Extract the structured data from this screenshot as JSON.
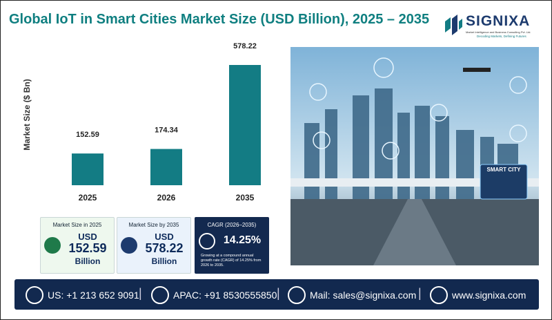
{
  "header": {
    "title": "Global IoT in Smart Cities Market Size (USD Billion), 2025 – 2035"
  },
  "logo": {
    "name": "SIGNIXA",
    "tagline": "Market Intelligence and Business Consulting Pvt. Ltd.",
    "motto": "Decoding Markets, Defining Futures"
  },
  "chart_data": {
    "type": "bar",
    "y_label": "Market Size ($ Bn)",
    "categories": [
      "2025",
      "2026",
      "2035"
    ],
    "values": [
      152.59,
      174.34,
      578.22
    ],
    "color": "#137c84"
  },
  "cards": [
    {
      "title": "Market Size in 2025",
      "currency": "USD",
      "unit": "Billion"
    },
    {
      "title": "Market Size by 2035",
      "currency": "USD",
      "unit": "Billion"
    },
    {
      "title": "CAGR (2026–2035)",
      "value": "14.25%",
      "note": "Growing at a compound annual growth rate (CAGR) of 14.25% from 2026 to 2035."
    }
  ],
  "image": {
    "label": "SMART CITY"
  },
  "footer": [
    "US: +1 213 652 9091",
    "APAC: +91 8530555850",
    "Mail: sales@signixa.com",
    "www.signixa.com"
  ]
}
